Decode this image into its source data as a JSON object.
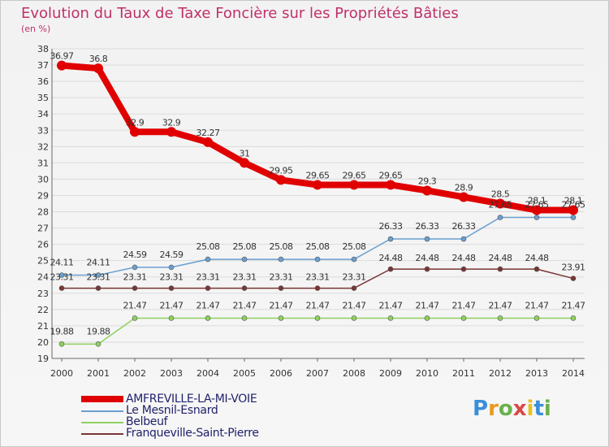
{
  "title": "Evolution du Taux de Taxe Foncière sur les Propriétés Bâties",
  "subtitle": "(en %)",
  "logo": {
    "letters": [
      "P",
      "r",
      "o",
      "x",
      "i",
      "t",
      "i"
    ],
    "colors": [
      "#3a8fd9",
      "#e89a1f",
      "#6ab04c",
      "#d94848",
      "#e8c21f",
      "#3a8fd9",
      "#6ab04c"
    ]
  },
  "chart_data": {
    "type": "line",
    "title": "Evolution du Taux de Taxe Foncière sur les Propriétés Bâties",
    "ylabel": "(en %)",
    "xlabel": "",
    "ylim": [
      19,
      38
    ],
    "yticks": [
      19,
      20,
      21,
      22,
      23,
      24,
      25,
      26,
      27,
      28,
      29,
      30,
      31,
      32,
      33,
      34,
      35,
      36,
      37,
      38
    ],
    "categories": [
      "2000",
      "2001",
      "2002",
      "2003",
      "2004",
      "2005",
      "2006",
      "2007",
      "2008",
      "2009",
      "2010",
      "2011",
      "2012",
      "2013",
      "2014"
    ],
    "series": [
      {
        "name": "AMFREVILLE-LA-MI-VOIE",
        "color": "#e00000",
        "values": [
          36.97,
          36.8,
          32.9,
          32.9,
          32.27,
          31,
          29.95,
          29.65,
          29.65,
          29.65,
          29.3,
          28.9,
          28.5,
          28.1,
          28.1
        ],
        "labels": [
          "36.97",
          "36.8",
          "32.9",
          "32.9",
          "32.27",
          "31",
          "29.95",
          "29.65",
          "29.65",
          "29.65",
          "29.3",
          "28.9",
          "28.5",
          "28.1",
          "28.1"
        ]
      },
      {
        "name": "Le Mesnil-Esnard",
        "color": "#6a9fd0",
        "values": [
          24.11,
          24.11,
          24.59,
          24.59,
          25.08,
          25.08,
          25.08,
          25.08,
          25.08,
          26.33,
          26.33,
          26.33,
          27.65,
          27.65,
          27.65
        ],
        "labels": [
          "24.11",
          "24.11",
          "24.59",
          "24.59",
          "25.08",
          "25.08",
          "25.08",
          "25.08",
          "25.08",
          "26.33",
          "26.33",
          "26.33",
          "27.65",
          "27.65",
          "27.65"
        ]
      },
      {
        "name": "Belbeuf",
        "color": "#8fd060",
        "values": [
          19.88,
          19.88,
          21.47,
          21.47,
          21.47,
          21.47,
          21.47,
          21.47,
          21.47,
          21.47,
          21.47,
          21.47,
          21.47,
          21.47,
          21.47
        ],
        "labels": [
          "19.88",
          "19.88",
          "21.47",
          "21.47",
          "21.47",
          "21.47",
          "21.47",
          "21.47",
          "21.47",
          "21.47",
          "21.47",
          "21.47",
          "21.47",
          "21.47",
          "21.47"
        ]
      },
      {
        "name": "Franqueville-Saint-Pierre",
        "color": "#7a3535",
        "values": [
          23.31,
          23.31,
          23.31,
          23.31,
          23.31,
          23.31,
          23.31,
          23.31,
          23.31,
          24.48,
          24.48,
          24.48,
          24.48,
          24.48,
          23.91
        ],
        "labels": [
          "23.31",
          "23.31",
          "23.31",
          "23.31",
          "23.31",
          "23.31",
          "23.31",
          "23.31",
          "23.31",
          "24.48",
          "24.48",
          "24.48",
          "24.48",
          "24.48",
          "23.91"
        ]
      }
    ]
  }
}
